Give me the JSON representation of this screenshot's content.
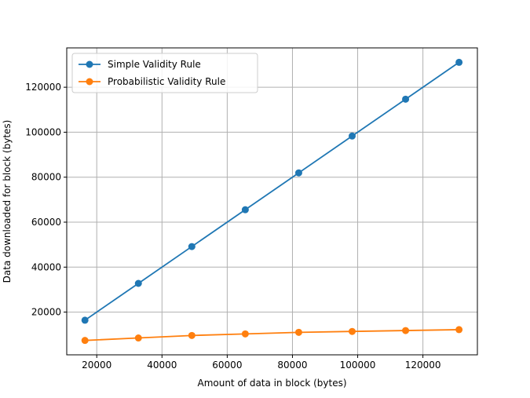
{
  "chart_data": {
    "type": "line",
    "title": "",
    "xlabel": "Amount of data in block (bytes)",
    "ylabel": "Data downloaded for block (bytes)",
    "xlim": [
      10800,
      136700
    ],
    "ylim": [
      1000,
      137500
    ],
    "xticks": [
      20000,
      40000,
      60000,
      80000,
      100000,
      120000
    ],
    "yticks": [
      20000,
      40000,
      60000,
      80000,
      100000,
      120000
    ],
    "x": [
      16384,
      32768,
      49152,
      65536,
      81920,
      98304,
      114688,
      131072
    ],
    "grid": true,
    "legend_position": "top-left",
    "series": [
      {
        "name": "Simple Validity Rule",
        "color": "#1f77b4",
        "marker": "circle",
        "values": [
          16384,
          32768,
          49152,
          65536,
          81920,
          98304,
          114688,
          131072
        ]
      },
      {
        "name": "Probabilistic Validity Rule",
        "color": "#ff7f0e",
        "marker": "circle",
        "values": [
          7400,
          8500,
          9600,
          10300,
          11000,
          11400,
          11800,
          12200
        ]
      }
    ]
  }
}
